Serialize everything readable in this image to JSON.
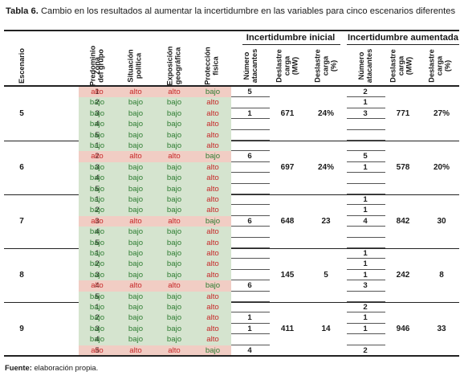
{
  "caption": {
    "label": "Tabla 6.",
    "text": "Cambio en los resultados al aumentar la incertidumbre en las variables para cinco escenarios diferentes"
  },
  "headers": {
    "group_initial": "Incertidumbre inicial",
    "group_increased": "Incertidumbre aumentada",
    "escenario": "Escenario",
    "zona": "Zona",
    "predominio": "Predominio\ndel grupo",
    "situacion": "Situación\npolítica",
    "exposicion": "Exposición\ngeográfica",
    "proteccion": "Protección\nfísica",
    "num_atacantes_1": "Número\natacantes",
    "deslastre_carga_1": "Deslastre\ncarga\n(MW)",
    "deslastre_pct_1": "Deslastre\ncarga\n(%)",
    "num_atacantes_2": "Número\natacantes",
    "deslastre_carga_2": "Deslastre\ncarga\n(MW)",
    "deslastre_pct_2": "Deslastre\ncarga\n(%)"
  },
  "scenarios": [
    {
      "escenario": "5",
      "mw_1": "671",
      "pct_1": "24%",
      "mw_2": "771",
      "pct_2": "27%",
      "rows": [
        {
          "zona": "1",
          "pred": "alto",
          "sit": "alto",
          "exp": "alto",
          "prot": "bajo",
          "row": "alto",
          "n1": "5",
          "n2": "2"
        },
        {
          "zona": "2",
          "pred": "bajo",
          "sit": "bajo",
          "exp": "bajo",
          "prot": "alto",
          "row": "bajo",
          "n1": "",
          "n2": "1"
        },
        {
          "zona": "3",
          "pred": "bajo",
          "sit": "bajo",
          "exp": "bajo",
          "prot": "alto",
          "row": "bajo",
          "n1": "1",
          "n2": "3"
        },
        {
          "zona": "4",
          "pred": "bajo",
          "sit": "bajo",
          "exp": "bajo",
          "prot": "alto",
          "row": "bajo",
          "n1": "",
          "n2": ""
        },
        {
          "zona": "5",
          "pred": "bajo",
          "sit": "bajo",
          "exp": "bajo",
          "prot": "alto",
          "row": "bajo",
          "n1": "",
          "n2": ""
        }
      ]
    },
    {
      "escenario": "6",
      "mw_1": "697",
      "pct_1": "24%",
      "mw_2": "578",
      "pct_2": "20%",
      "rows": [
        {
          "zona": "1",
          "pred": "bajo",
          "sit": "bajo",
          "exp": "bajo",
          "prot": "alto",
          "row": "bajo",
          "n1": "",
          "n2": ""
        },
        {
          "zona": "2",
          "pred": "alto",
          "sit": "alto",
          "exp": "alto",
          "prot": "bajo",
          "row": "alto",
          "n1": "6",
          "n2": "5"
        },
        {
          "zona": "3",
          "pred": "bajo",
          "sit": "bajo",
          "exp": "bajo",
          "prot": "alto",
          "row": "bajo",
          "n1": "",
          "n2": "1"
        },
        {
          "zona": "4",
          "pred": "bajo",
          "sit": "bajo",
          "exp": "bajo",
          "prot": "alto",
          "row": "bajo",
          "n1": "",
          "n2": ""
        },
        {
          "zona": "5",
          "pred": "bajo",
          "sit": "bajo",
          "exp": "bajo",
          "prot": "alto",
          "row": "bajo",
          "n1": "",
          "n2": ""
        }
      ]
    },
    {
      "escenario": "7",
      "mw_1": "648",
      "pct_1": "23",
      "mw_2": "842",
      "pct_2": "30",
      "rows": [
        {
          "zona": "1",
          "pred": "bajo",
          "sit": "bajo",
          "exp": "bajo",
          "prot": "alto",
          "row": "bajo",
          "n1": "",
          "n2": "1"
        },
        {
          "zona": "2",
          "pred": "bajo",
          "sit": "bajo",
          "exp": "bajo",
          "prot": "alto",
          "row": "bajo",
          "n1": "",
          "n2": "1"
        },
        {
          "zona": "3",
          "pred": "alto",
          "sit": "alto",
          "exp": "alto",
          "prot": "bajo",
          "row": "alto",
          "n1": "6",
          "n2": "4"
        },
        {
          "zona": "4",
          "pred": "bajo",
          "sit": "bajo",
          "exp": "bajo",
          "prot": "alto",
          "row": "bajo",
          "n1": "",
          "n2": ""
        },
        {
          "zona": "5",
          "pred": "bajo",
          "sit": "bajo",
          "exp": "bajo",
          "prot": "alto",
          "row": "bajo",
          "n1": "",
          "n2": ""
        }
      ]
    },
    {
      "escenario": "8",
      "mw_1": "145",
      "pct_1": "5",
      "mw_2": "242",
      "pct_2": "8",
      "rows": [
        {
          "zona": "1",
          "pred": "bajo",
          "sit": "bajo",
          "exp": "bajo",
          "prot": "alto",
          "row": "bajo",
          "n1": "",
          "n2": "1"
        },
        {
          "zona": "2",
          "pred": "bajo",
          "sit": "bajo",
          "exp": "bajo",
          "prot": "alto",
          "row": "bajo",
          "n1": "",
          "n2": "1"
        },
        {
          "zona": "3",
          "pred": "bajo",
          "sit": "bajo",
          "exp": "bajo",
          "prot": "alto",
          "row": "bajo",
          "n1": "",
          "n2": "1"
        },
        {
          "zona": "4",
          "pred": "alto",
          "sit": "alto",
          "exp": "alto",
          "prot": "bajo",
          "row": "alto",
          "n1": "6",
          "n2": "3"
        },
        {
          "zona": "5",
          "pred": "bajo",
          "sit": "bajo",
          "exp": "bajo",
          "prot": "alto",
          "row": "bajo",
          "n1": "",
          "n2": ""
        }
      ]
    },
    {
      "escenario": "9",
      "mw_1": "411",
      "pct_1": "14",
      "mw_2": "946",
      "pct_2": "33",
      "rows": [
        {
          "zona": "1",
          "pred": "bajo",
          "sit": "bajo",
          "exp": "bajo",
          "prot": "alto",
          "row": "bajo",
          "n1": "",
          "n2": "2"
        },
        {
          "zona": "2",
          "pred": "bajo",
          "sit": "bajo",
          "exp": "bajo",
          "prot": "alto",
          "row": "bajo",
          "n1": "1",
          "n2": "1"
        },
        {
          "zona": "3",
          "pred": "bajo",
          "sit": "bajo",
          "exp": "bajo",
          "prot": "alto",
          "row": "bajo",
          "n1": "1",
          "n2": "1"
        },
        {
          "zona": "4",
          "pred": "bajo",
          "sit": "bajo",
          "exp": "bajo",
          "prot": "alto",
          "row": "bajo",
          "n1": "",
          "n2": ""
        },
        {
          "zona": "5",
          "pred": "alto",
          "sit": "alto",
          "exp": "alto",
          "prot": "bajo",
          "row": "alto",
          "n1": "4",
          "n2": "2"
        }
      ]
    }
  ],
  "footer": {
    "label": "Fuente:",
    "text": "elaboración propia."
  },
  "colors": {
    "bajo_bg": "#d5e4cf",
    "alto_bg": "#f1cdc4",
    "bajo_text": "#2e7d32",
    "alto_text": "#c62828"
  }
}
